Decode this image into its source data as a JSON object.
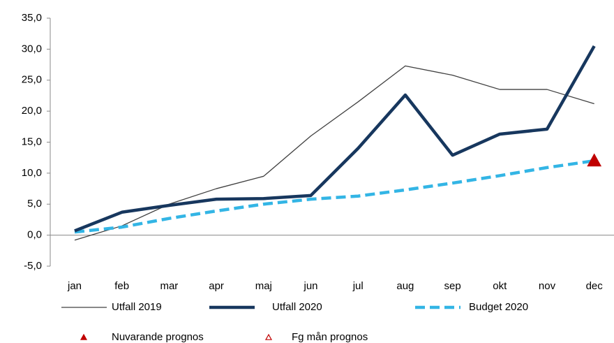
{
  "chart_data": {
    "type": "line",
    "categories": [
      "jan",
      "feb",
      "mar",
      "apr",
      "maj",
      "jun",
      "jul",
      "aug",
      "sep",
      "okt",
      "nov",
      "dec"
    ],
    "ylim": [
      -5,
      35
    ],
    "yticks": [
      {
        "value": -5,
        "label": "-5,0"
      },
      {
        "value": 0,
        "label": "0,0"
      },
      {
        "value": 5,
        "label": "5,0"
      },
      {
        "value": 10,
        "label": "10,0"
      },
      {
        "value": 15,
        "label": "15,0"
      },
      {
        "value": 20,
        "label": "20,0"
      },
      {
        "value": 25,
        "label": "25,0"
      },
      {
        "value": 30,
        "label": "30,0"
      },
      {
        "value": 35,
        "label": "35,0"
      }
    ],
    "grid": false,
    "legend": "bottom",
    "series": [
      {
        "name": "Utfall 2019",
        "color": "#404040",
        "style": "thin",
        "values": [
          -0.8,
          1.5,
          5.0,
          7.5,
          9.5,
          16.0,
          21.5,
          27.3,
          25.8,
          23.5,
          23.5,
          21.2
        ]
      },
      {
        "name": "Utfall 2020",
        "color": "#17375e",
        "style": "thick",
        "values": [
          0.7,
          3.7,
          4.8,
          5.8,
          5.9,
          6.4,
          14.0,
          22.6,
          12.9,
          16.3,
          17.1,
          30.5
        ]
      },
      {
        "name": "Budget 2020",
        "color": "#33b5e5",
        "style": "dashed",
        "values": [
          0.5,
          1.3,
          2.7,
          3.9,
          5.0,
          5.8,
          6.3,
          7.3,
          8.4,
          9.6,
          10.9,
          12.0
        ]
      },
      {
        "name": "Nuvarande prognos",
        "color": "#c00000",
        "style": "marker-filled",
        "values": [
          null,
          null,
          null,
          null,
          null,
          null,
          null,
          null,
          null,
          null,
          null,
          12.0
        ]
      },
      {
        "name": "Fg mån prognos",
        "color": "#c00000",
        "style": "marker-open",
        "values": [
          null,
          null,
          null,
          null,
          null,
          null,
          null,
          null,
          null,
          null,
          null,
          12.0
        ]
      }
    ]
  }
}
